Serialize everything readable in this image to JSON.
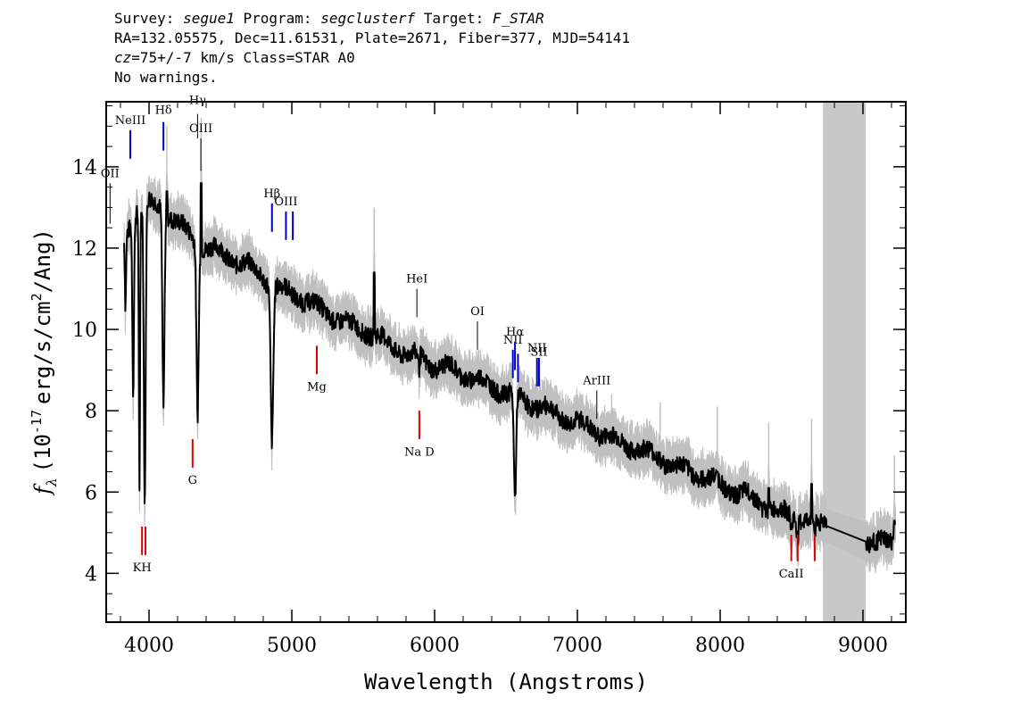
{
  "header": {
    "survey_label": "Survey: ",
    "survey": "segue1",
    "program_label": " Program: ",
    "program": "segclusterf",
    "target_label": " Target: ",
    "target": "F_STAR",
    "line2": "RA=132.05575, Dec=11.61531, Plate=2671, Fiber=377, MJD=54141",
    "cz_label": "cz",
    "cz_rest": "=75+/-7 km/s Class=STAR A0",
    "line4": "No warnings."
  },
  "colors": {
    "emission": "#0000cc",
    "absorption": "#dd0000",
    "neutral": "#000000",
    "error_band": "#c0c0c0",
    "masked_region": "#c8c8c8",
    "spectrum": "#000000"
  },
  "chart_data": {
    "type": "line",
    "xlabel": "Wavelength (Angstroms)",
    "ylabel_main": "f",
    "ylabel_sub": "λ",
    "ylabel_units": "(10",
    "ylabel_exp": "-17",
    "ylabel_rest": "erg/s/cm",
    "ylabel_sq": "2",
    "ylabel_end": "/Ang)",
    "xlim": [
      3700,
      9300
    ],
    "ylim": [
      2.8,
      15.6
    ],
    "x_ticks": [
      4000,
      5000,
      6000,
      7000,
      8000,
      9000
    ],
    "x_tick_labels": [
      "4000",
      "5000",
      "6000",
      "7000",
      "8000",
      "9000"
    ],
    "y_ticks": [
      4,
      6,
      8,
      10,
      12,
      14
    ],
    "y_tick_labels": [
      "4",
      "6",
      "8",
      "10",
      "12",
      "14"
    ],
    "masked_region": [
      8720,
      9020
    ],
    "continuum": [
      [
        3825,
        12.2
      ],
      [
        3900,
        12.9
      ],
      [
        4000,
        13.1
      ],
      [
        4100,
        13.0
      ],
      [
        4200,
        12.6
      ],
      [
        4300,
        12.3
      ],
      [
        4400,
        12.0
      ],
      [
        4500,
        11.9
      ],
      [
        4600,
        11.7
      ],
      [
        4700,
        11.55
      ],
      [
        4800,
        11.3
      ],
      [
        4900,
        11.0
      ],
      [
        5000,
        10.9
      ],
      [
        5100,
        10.7
      ],
      [
        5200,
        10.5
      ],
      [
        5300,
        10.3
      ],
      [
        5400,
        10.1
      ],
      [
        5500,
        10.0
      ],
      [
        5600,
        9.8
      ],
      [
        5700,
        9.6
      ],
      [
        5800,
        9.4
      ],
      [
        5900,
        9.3
      ],
      [
        6000,
        9.1
      ],
      [
        6100,
        9.05
      ],
      [
        6200,
        8.9
      ],
      [
        6300,
        8.75
      ],
      [
        6400,
        8.6
      ],
      [
        6500,
        8.45
      ],
      [
        6600,
        8.3
      ],
      [
        6700,
        8.15
      ],
      [
        6800,
        8.0
      ],
      [
        6900,
        7.85
      ],
      [
        7000,
        7.7
      ],
      [
        7100,
        7.55
      ],
      [
        7200,
        7.4
      ],
      [
        7300,
        7.2
      ],
      [
        7400,
        7.1
      ],
      [
        7500,
        6.95
      ],
      [
        7600,
        6.8
      ],
      [
        7700,
        6.6
      ],
      [
        7800,
        6.5
      ],
      [
        7900,
        6.35
      ],
      [
        8000,
        6.2
      ],
      [
        8100,
        6.0
      ],
      [
        8200,
        5.9
      ],
      [
        8300,
        5.7
      ],
      [
        8400,
        5.5
      ],
      [
        8500,
        5.45
      ],
      [
        8600,
        5.3
      ],
      [
        8700,
        5.2
      ],
      [
        8750,
        5.4
      ],
      [
        9000,
        4.85
      ],
      [
        9100,
        4.7
      ],
      [
        9200,
        4.8
      ],
      [
        9230,
        5.4
      ]
    ],
    "absorption_features": [
      {
        "center": 3835,
        "depth": 10.6,
        "width": 6
      },
      {
        "center": 3889,
        "depth": 8.6,
        "width": 8
      },
      {
        "center": 3933,
        "depth": 6.2,
        "width": 6
      },
      {
        "center": 3970,
        "depth": 5.6,
        "width": 9
      },
      {
        "center": 4101,
        "depth": 8.1,
        "width": 10
      },
      {
        "center": 4340,
        "depth": 8.0,
        "width": 11
      },
      {
        "center": 4861,
        "depth": 7.3,
        "width": 13
      },
      {
        "center": 5890,
        "depth": 8.9,
        "width": 6
      },
      {
        "center": 6563,
        "depth": 5.7,
        "width": 11
      },
      {
        "center": 8498,
        "depth": 5.1,
        "width": 8
      },
      {
        "center": 8542,
        "depth": 4.95,
        "width": 8
      },
      {
        "center": 8662,
        "depth": 4.9,
        "width": 8
      }
    ],
    "spikes": [
      {
        "center": 4125,
        "height": 13.8
      },
      {
        "center": 4365,
        "height": 14.0
      },
      {
        "center": 5577,
        "height": 11.8
      },
      {
        "center": 7240,
        "height": 7.2
      },
      {
        "center": 7580,
        "height": 7.0
      },
      {
        "center": 7980,
        "height": 6.9
      },
      {
        "center": 8340,
        "height": 6.5
      },
      {
        "center": 8640,
        "height": 6.6
      },
      {
        "center": 9220,
        "height": 5.7
      }
    ],
    "lines": [
      {
        "label": "OII",
        "wavelength": 3727,
        "kind": "neutral",
        "y1": 12.6,
        "y2": 13.6,
        "ly": 13.75
      },
      {
        "label": "NeIII",
        "wavelength": 3869,
        "kind": "emission",
        "y1": 14.2,
        "y2": 14.9,
        "ly": 15.05
      },
      {
        "label": "Hδ",
        "wavelength": 4101,
        "kind": "emission",
        "y1": 14.4,
        "y2": 15.1,
        "ly": 15.3
      },
      {
        "label": "Hγ",
        "wavelength": 4340,
        "kind": "neutral",
        "y1": 14.7,
        "y2": 15.3,
        "ly": 15.55
      },
      {
        "label": "OIII",
        "wavelength": 4363,
        "kind": "neutral",
        "y1": 13.9,
        "y2": 14.7,
        "ly": 14.85
      },
      {
        "label": "Hβ",
        "wavelength": 4861,
        "kind": "emission",
        "y1": 12.4,
        "y2": 13.1,
        "ly": 13.25
      },
      {
        "label": "OIII",
        "wavelength": 4959,
        "kind": "emission",
        "y1": 12.2,
        "y2": 12.9,
        "ly": 13.05
      },
      {
        "label": "",
        "wavelength": 5007,
        "kind": "emission",
        "y1": 12.2,
        "y2": 12.9,
        "ly": 0
      },
      {
        "label": "HeI",
        "wavelength": 5876,
        "kind": "neutral",
        "y1": 10.3,
        "y2": 11.0,
        "ly": 11.15
      },
      {
        "label": "OI",
        "wavelength": 6300,
        "kind": "neutral",
        "y1": 9.5,
        "y2": 10.2,
        "ly": 10.35
      },
      {
        "label": "NII",
        "wavelength": 6548,
        "kind": "emission",
        "y1": 8.8,
        "y2": 9.5,
        "ly": 9.65
      },
      {
        "label": "Hα",
        "wavelength": 6563,
        "kind": "emission",
        "y1": 9.0,
        "y2": 9.7,
        "ly": 9.85
      },
      {
        "label": "",
        "wavelength": 6584,
        "kind": "emission",
        "y1": 8.7,
        "y2": 9.4,
        "ly": 0
      },
      {
        "label": "NII",
        "wavelength": 6717,
        "kind": "emission",
        "y1": 8.6,
        "y2": 9.3,
        "ly": 9.45
      },
      {
        "label": "SII",
        "wavelength": 6731,
        "kind": "emission",
        "y1": 8.6,
        "y2": 9.3,
        "ly": 9.35
      },
      {
        "label": "ArIII",
        "wavelength": 7136,
        "kind": "neutral",
        "y1": 7.8,
        "y2": 8.5,
        "ly": 8.65
      },
      {
        "label": "Mg",
        "wavelength": 5175,
        "kind": "absorption",
        "y1": 8.9,
        "y2": 9.6,
        "ly": 8.5
      },
      {
        "label": "G",
        "wavelength": 4305,
        "kind": "absorption",
        "y1": 6.6,
        "y2": 7.3,
        "ly": 6.2
      },
      {
        "label": "Na D",
        "wavelength": 5893,
        "kind": "absorption",
        "y1": 7.3,
        "y2": 8.0,
        "ly": 6.9
      },
      {
        "label": "KH",
        "wavelength": 3951,
        "kind": "absorption",
        "y1": 4.45,
        "y2": 5.15,
        "ly": 4.05
      },
      {
        "label": "",
        "wavelength": 3975,
        "kind": "absorption",
        "y1": 4.45,
        "y2": 5.15,
        "ly": 0
      },
      {
        "label": "CaII",
        "wavelength": 8498,
        "kind": "absorption",
        "y1": 4.3,
        "y2": 4.95,
        "ly": 3.9
      },
      {
        "label": "",
        "wavelength": 8542,
        "kind": "absorption",
        "y1": 4.3,
        "y2": 4.95,
        "ly": 0
      },
      {
        "label": "",
        "wavelength": 8662,
        "kind": "absorption",
        "y1": 4.3,
        "y2": 4.95,
        "ly": 0
      }
    ]
  }
}
